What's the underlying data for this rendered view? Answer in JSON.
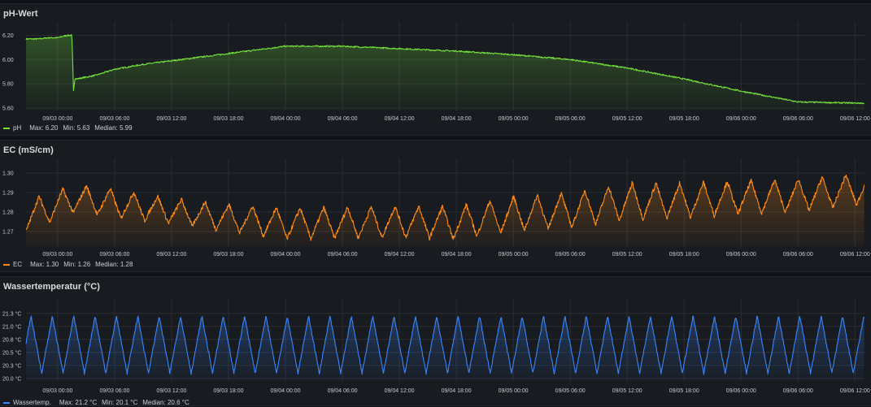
{
  "panels": [
    {
      "title": "pH-Wert",
      "series_label": "pH",
      "stats": [
        "Max: 6.20",
        "Min: 5.63",
        "Median: 5.99"
      ],
      "color": "#73e03c"
    },
    {
      "title": "EC (mS/cm)",
      "series_label": "EC",
      "stats": [
        "Max: 1.30",
        "Min: 1.26",
        "Median: 1.28"
      ],
      "color": "#ff8c1a"
    },
    {
      "title": "Wassertemperatur (°C)",
      "series_label": "Wassertemp.",
      "stats": [
        "Max: 21.2 °C",
        "Min: 20.1 °C",
        "Median: 20.6 °C"
      ],
      "color": "#3a86ff"
    }
  ],
  "x_tick_labels": [
    "09/03 00:00",
    "09/03 06:00",
    "09/03 12:00",
    "09/03 18:00",
    "09/04 00:00",
    "09/04 06:00",
    "09/04 12:00",
    "09/04 18:00",
    "09/05 00:00",
    "09/05 06:00",
    "09/05 12:00",
    "09/05 18:00",
    "09/06 00:00",
    "09/06 06:00",
    "09/06 12:00"
  ],
  "chart_data": [
    {
      "type": "area",
      "title": "pH-Wert",
      "series": [
        {
          "name": "pH"
        }
      ],
      "x_range": [
        "09/02 20:40",
        "09/06 13:00"
      ],
      "ylim": [
        5.58,
        6.27
      ],
      "y_ticks": [
        5.6,
        5.8,
        6.0,
        6.2
      ],
      "y_tick_labels": [
        "5.60",
        "5.80",
        "6.00",
        "6.20"
      ],
      "grid": true,
      "legend": "bottom-left",
      "points": [
        [
          "09/02 20:40",
          6.17
        ],
        [
          "09/02 22:00",
          6.17
        ],
        [
          "09/02 23:00",
          6.18
        ],
        [
          "09/03 00:00",
          6.18
        ],
        [
          "09/03 01:00",
          6.2
        ],
        [
          "09/03 01:30",
          6.2
        ],
        [
          "09/03 01:40",
          5.74
        ],
        [
          "09/03 01:50",
          5.85
        ],
        [
          "09/03 02:00",
          5.84
        ],
        [
          "09/03 04:00",
          5.87
        ],
        [
          "09/03 06:00",
          5.92
        ],
        [
          "09/03 09:00",
          5.96
        ],
        [
          "09/03 12:00",
          5.99
        ],
        [
          "09/03 18:00",
          6.05
        ],
        [
          "09/04 00:00",
          6.11
        ],
        [
          "09/04 06:00",
          6.11
        ],
        [
          "09/04 12:00",
          6.09
        ],
        [
          "09/04 18:00",
          6.07
        ],
        [
          "09/05 00:00",
          6.04
        ],
        [
          "09/05 06:00",
          6.0
        ],
        [
          "09/05 12:00",
          5.93
        ],
        [
          "09/05 18:00",
          5.84
        ],
        [
          "09/06 00:00",
          5.74
        ],
        [
          "09/06 06:00",
          5.65
        ],
        [
          "09/06 13:00",
          5.64
        ]
      ]
    },
    {
      "type": "area",
      "title": "EC (mS/cm)",
      "series": [
        {
          "name": "EC"
        }
      ],
      "x_range": [
        "09/02 20:40",
        "09/06 13:00"
      ],
      "ylim": [
        1.262,
        1.305
      ],
      "y_ticks": [
        1.27,
        1.28,
        1.29,
        1.3
      ],
      "y_tick_labels": [
        "1.27",
        "1.28",
        "1.29",
        "1.30"
      ],
      "grid": true,
      "legend": "bottom-left",
      "oscillation_period_hours": 2.5,
      "envelope": [
        [
          "09/02 20:40",
          1.27,
          1.286
        ],
        [
          "09/03 02:00",
          1.28,
          1.294
        ],
        [
          "09/03 06:00",
          1.277,
          1.292
        ],
        [
          "09/03 12:00",
          1.274,
          1.287
        ],
        [
          "09/03 18:00",
          1.27,
          1.284
        ],
        [
          "09/04 00:00",
          1.266,
          1.282
        ],
        [
          "09/04 12:00",
          1.267,
          1.283
        ],
        [
          "09/04 18:00",
          1.266,
          1.283
        ],
        [
          "09/05 00:00",
          1.27,
          1.288
        ],
        [
          "09/05 06:00",
          1.272,
          1.29
        ],
        [
          "09/05 12:00",
          1.276,
          1.295
        ],
        [
          "09/05 18:00",
          1.277,
          1.295
        ],
        [
          "09/06 00:00",
          1.279,
          1.296
        ],
        [
          "09/06 06:00",
          1.28,
          1.297
        ],
        [
          "09/06 13:00",
          1.284,
          1.3
        ]
      ]
    },
    {
      "type": "area",
      "title": "Wassertemperatur (°C)",
      "series": [
        {
          "name": "Wassertemp."
        }
      ],
      "x_range": [
        "09/02 20:40",
        "09/06 13:00"
      ],
      "ylim": [
        19.95,
        21.45
      ],
      "y_ticks": [
        20.0,
        20.25,
        20.5,
        20.75,
        21.0,
        21.25
      ],
      "y_tick_labels": [
        "20.0 °C",
        "20.3 °C",
        "20.5 °C",
        "20.8 °C",
        "21.0 °C",
        "21.3 °C"
      ],
      "grid": true,
      "legend": "bottom-left",
      "oscillation_period_hours": 2.25,
      "min": 20.1,
      "max": 21.2
    }
  ]
}
